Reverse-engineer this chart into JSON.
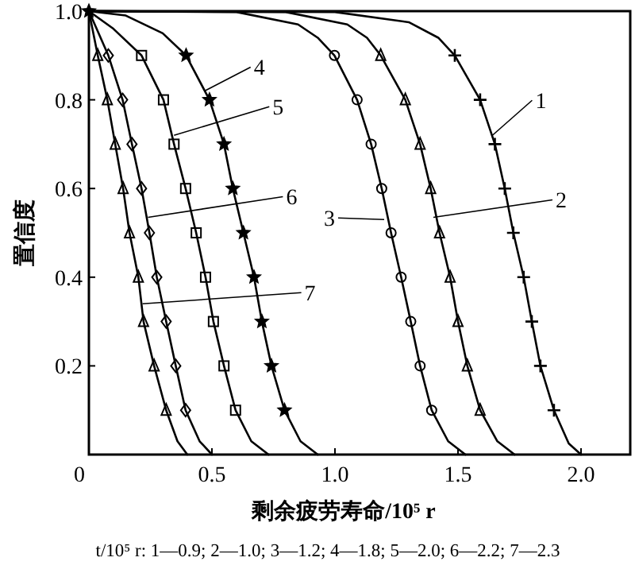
{
  "chart_data": {
    "type": "line",
    "xlabel": "剩余疲劳寿命/10⁵ r",
    "ylabel": "置信度",
    "xlim": [
      0,
      2.2
    ],
    "ylim": [
      0,
      1.0
    ],
    "xticks": [
      {
        "value": 0,
        "label": "0"
      },
      {
        "value": 0.5,
        "label": "0.5"
      },
      {
        "value": 1.0,
        "label": "1.0"
      },
      {
        "value": 1.5,
        "label": "1.5"
      },
      {
        "value": 2.0,
        "label": "2.0"
      }
    ],
    "yticks": [
      {
        "value": 0,
        "label": null
      },
      {
        "value": 0.2,
        "label": "0.2"
      },
      {
        "value": 0.4,
        "label": "0.4"
      },
      {
        "value": 0.6,
        "label": "0.6"
      },
      {
        "value": 0.8,
        "label": "0.8"
      },
      {
        "value": 1.0,
        "label": "1.0"
      }
    ],
    "grid": false,
    "series": [
      {
        "type": "line",
        "color": "#000000",
        "marker": "none",
        "x": [
          0,
          1.0,
          1.3,
          1.42,
          1.487,
          1.59,
          1.65,
          1.69,
          1.725,
          1.767,
          1.8,
          1.835,
          1.89,
          1.95,
          2.0
        ],
        "values": [
          1,
          0.998,
          0.975,
          0.94,
          0.9,
          0.8,
          0.7,
          0.6,
          0.5,
          0.4,
          0.3,
          0.2,
          0.1,
          0.025,
          0
        ]
      },
      {
        "type": "scatter",
        "color": "#000000",
        "marker": "cross",
        "x": [
          1.487,
          1.59,
          1.65,
          1.69,
          1.725,
          1.767,
          1.8,
          1.835,
          1.89
        ],
        "values": [
          0.9,
          0.8,
          0.7,
          0.6,
          0.5,
          0.4,
          0.3,
          0.2,
          0.1
        ]
      },
      {
        "type": "line",
        "color": "#000000",
        "marker": "none",
        "x": [
          0,
          0.8,
          1.05,
          1.13,
          1.186,
          1.286,
          1.346,
          1.389,
          1.425,
          1.468,
          1.5,
          1.538,
          1.59,
          1.66,
          1.73
        ],
        "values": [
          1,
          0.998,
          0.97,
          0.94,
          0.9,
          0.8,
          0.7,
          0.6,
          0.5,
          0.4,
          0.3,
          0.2,
          0.1,
          0.03,
          0
        ]
      },
      {
        "type": "scatter",
        "color": "#000000",
        "marker": "triangle",
        "x": [
          1.186,
          1.286,
          1.346,
          1.389,
          1.425,
          1.468,
          1.5,
          1.538,
          1.59
        ],
        "values": [
          0.9,
          0.8,
          0.7,
          0.6,
          0.5,
          0.4,
          0.3,
          0.2,
          0.1
        ]
      },
      {
        "type": "line",
        "color": "#000000",
        "marker": "none",
        "x": [
          0,
          0.6,
          0.85,
          0.93,
          0.998,
          1.09,
          1.147,
          1.19,
          1.228,
          1.269,
          1.308,
          1.346,
          1.393,
          1.46,
          1.53
        ],
        "values": [
          1,
          0.998,
          0.97,
          0.94,
          0.9,
          0.8,
          0.7,
          0.6,
          0.5,
          0.4,
          0.3,
          0.2,
          0.1,
          0.03,
          0
        ]
      },
      {
        "type": "scatter",
        "color": "#000000",
        "marker": "circle",
        "x": [
          0.998,
          1.09,
          1.147,
          1.19,
          1.228,
          1.269,
          1.308,
          1.346,
          1.393
        ],
        "values": [
          0.9,
          0.8,
          0.7,
          0.6,
          0.5,
          0.4,
          0.3,
          0.2,
          0.1
        ]
      },
      {
        "type": "line",
        "color": "#000000",
        "marker": "none",
        "x": [
          0,
          0.15,
          0.3,
          0.395,
          0.49,
          0.549,
          0.585,
          0.628,
          0.671,
          0.703,
          0.742,
          0.795,
          0.86,
          0.93
        ],
        "values": [
          1,
          0.99,
          0.95,
          0.9,
          0.8,
          0.7,
          0.6,
          0.5,
          0.4,
          0.3,
          0.2,
          0.1,
          0.03,
          0
        ]
      },
      {
        "type": "scatter",
        "color": "#000000",
        "marker": "star",
        "x": [
          0,
          0.395,
          0.49,
          0.549,
          0.585,
          0.628,
          0.671,
          0.703,
          0.742,
          0.795
        ],
        "values": [
          1,
          0.9,
          0.8,
          0.7,
          0.6,
          0.5,
          0.4,
          0.3,
          0.2,
          0.1
        ]
      },
      {
        "type": "line",
        "color": "#000000",
        "marker": "none",
        "x": [
          0,
          0.1,
          0.214,
          0.303,
          0.346,
          0.393,
          0.436,
          0.474,
          0.506,
          0.549,
          0.596,
          0.66,
          0.73
        ],
        "values": [
          1,
          0.96,
          0.9,
          0.8,
          0.7,
          0.6,
          0.5,
          0.4,
          0.3,
          0.2,
          0.1,
          0.03,
          0
        ]
      },
      {
        "type": "scatter",
        "color": "#000000",
        "marker": "square",
        "x": [
          0.214,
          0.303,
          0.346,
          0.393,
          0.436,
          0.474,
          0.506,
          0.549,
          0.596
        ],
        "values": [
          0.9,
          0.8,
          0.7,
          0.6,
          0.5,
          0.4,
          0.3,
          0.2,
          0.1
        ]
      },
      {
        "type": "line",
        "color": "#000000",
        "marker": "none",
        "x": [
          0,
          0.079,
          0.137,
          0.175,
          0.214,
          0.246,
          0.276,
          0.314,
          0.353,
          0.393,
          0.45,
          0.5
        ],
        "values": [
          1,
          0.9,
          0.8,
          0.7,
          0.6,
          0.5,
          0.4,
          0.3,
          0.2,
          0.1,
          0.03,
          0
        ]
      },
      {
        "type": "scatter",
        "color": "#000000",
        "marker": "diamond",
        "x": [
          0.079,
          0.137,
          0.175,
          0.214,
          0.246,
          0.276,
          0.314,
          0.353,
          0.393
        ],
        "values": [
          0.9,
          0.8,
          0.7,
          0.6,
          0.5,
          0.4,
          0.3,
          0.2,
          0.1
        ]
      },
      {
        "type": "line",
        "color": "#000000",
        "marker": "none",
        "x": [
          0,
          0.036,
          0.075,
          0.107,
          0.139,
          0.165,
          0.201,
          0.222,
          0.265,
          0.314,
          0.36,
          0.4
        ],
        "values": [
          1,
          0.9,
          0.8,
          0.7,
          0.6,
          0.5,
          0.4,
          0.3,
          0.2,
          0.1,
          0.03,
          0
        ]
      },
      {
        "type": "scatter",
        "color": "#000000",
        "marker": "triangle",
        "x": [
          0.036,
          0.075,
          0.107,
          0.139,
          0.165,
          0.201,
          0.222,
          0.265,
          0.314
        ],
        "values": [
          0.9,
          0.8,
          0.7,
          0.6,
          0.5,
          0.4,
          0.3,
          0.2,
          0.1
        ]
      }
    ],
    "annotations": [
      {
        "text": "1",
        "x": 1.64,
        "y": 0.72
      },
      {
        "text": "2",
        "x": 1.4,
        "y": 0.535
      },
      {
        "text": "3",
        "x": 1.2,
        "y": 0.53
      },
      {
        "text": "4",
        "x": 0.47,
        "y": 0.82
      },
      {
        "text": "5",
        "x": 0.346,
        "y": 0.72
      },
      {
        "text": "6",
        "x": 0.24,
        "y": 0.535
      },
      {
        "text": "7",
        "x": 0.218,
        "y": 0.34
      },
      "t/10⁵ r: 1—0.9; 2—1.0; 3—1.2; 4—1.8; 5—2.0; 6—2.2; 7—2.3"
    ]
  }
}
